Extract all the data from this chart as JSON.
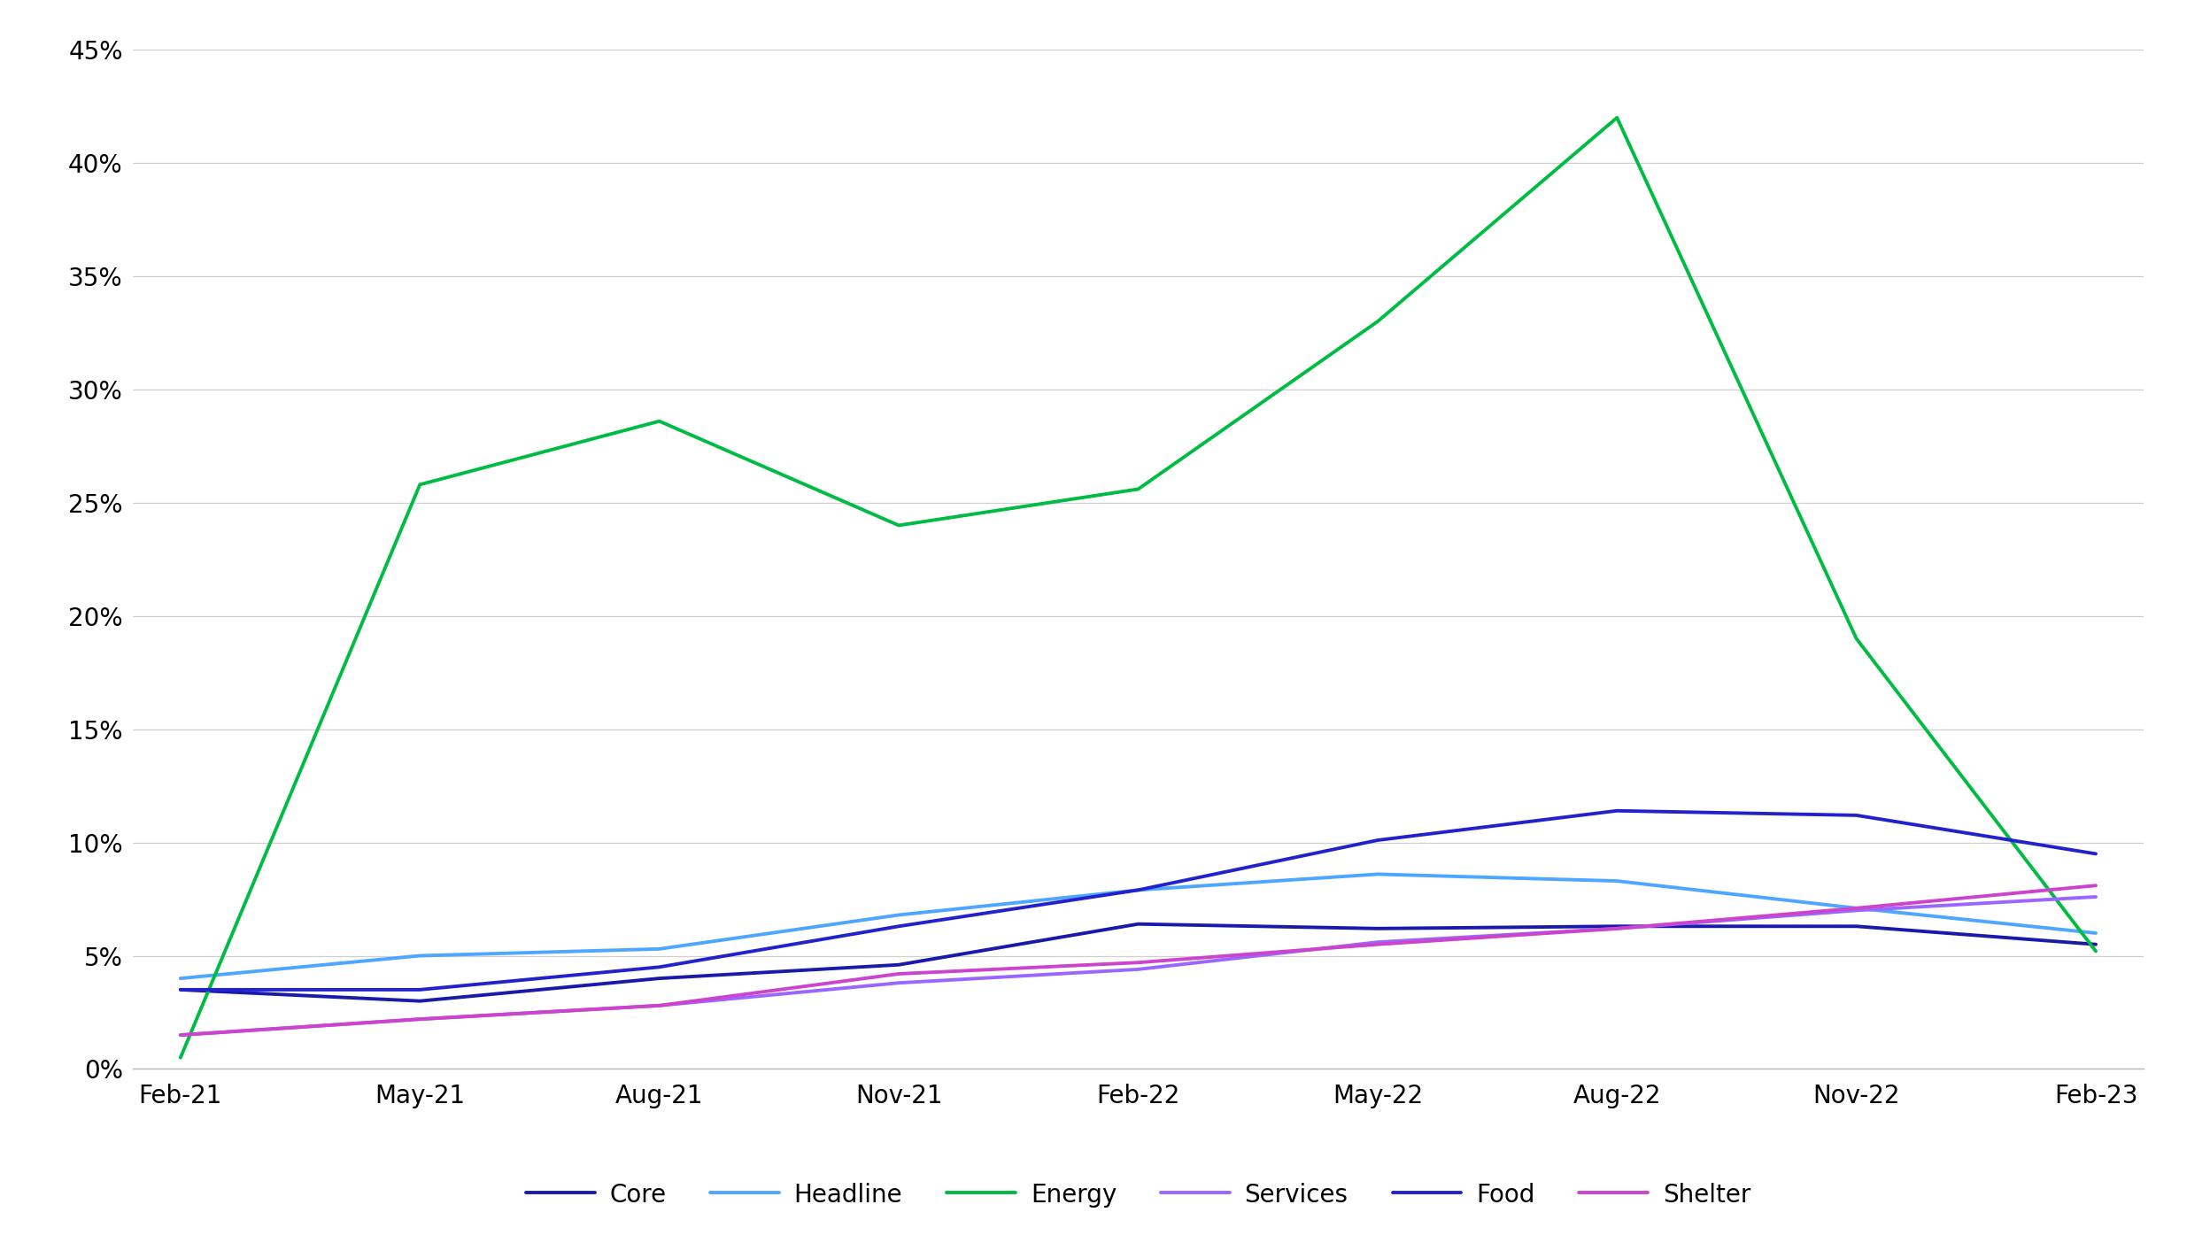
{
  "x_labels": [
    "Feb-21",
    "May-21",
    "Aug-21",
    "Nov-21",
    "Feb-22",
    "May-22",
    "Aug-22",
    "Nov-22",
    "Feb-23"
  ],
  "series": {
    "Core": {
      "color": "#1a1aaa",
      "values": [
        3.5,
        3.0,
        4.0,
        4.6,
        6.4,
        6.2,
        6.3,
        6.3,
        5.5
      ]
    },
    "Headline": {
      "color": "#4da6ff",
      "values": [
        4.0,
        5.0,
        5.3,
        6.8,
        7.9,
        8.6,
        8.3,
        7.1,
        6.0
      ]
    },
    "Energy": {
      "color": "#00bb44",
      "values": [
        0.5,
        25.8,
        28.6,
        24.0,
        25.6,
        33.0,
        42.0,
        19.0,
        5.2
      ]
    },
    "Services": {
      "color": "#9966ff",
      "values": [
        1.5,
        2.2,
        2.8,
        3.8,
        4.4,
        5.6,
        6.2,
        7.0,
        7.6
      ]
    },
    "Food": {
      "color": "#2222cc",
      "values": [
        3.5,
        3.5,
        4.5,
        6.3,
        7.9,
        10.1,
        11.4,
        11.2,
        9.5
      ]
    },
    "Shelter": {
      "color": "#cc44cc",
      "values": [
        1.5,
        2.2,
        2.8,
        4.2,
        4.7,
        5.5,
        6.2,
        7.1,
        8.1
      ]
    }
  },
  "ytick_vals": [
    0,
    5,
    10,
    15,
    20,
    25,
    30,
    35,
    40,
    45
  ],
  "ytick_labels": [
    "0%",
    "5%",
    "10%",
    "15%",
    "20%",
    "25%",
    "30%",
    "35%",
    "40%",
    "45%"
  ],
  "background_color": "#ffffff",
  "grid_color": "#d0d0d0",
  "legend_order": [
    "Core",
    "Headline",
    "Energy",
    "Services",
    "Food",
    "Shelter"
  ]
}
